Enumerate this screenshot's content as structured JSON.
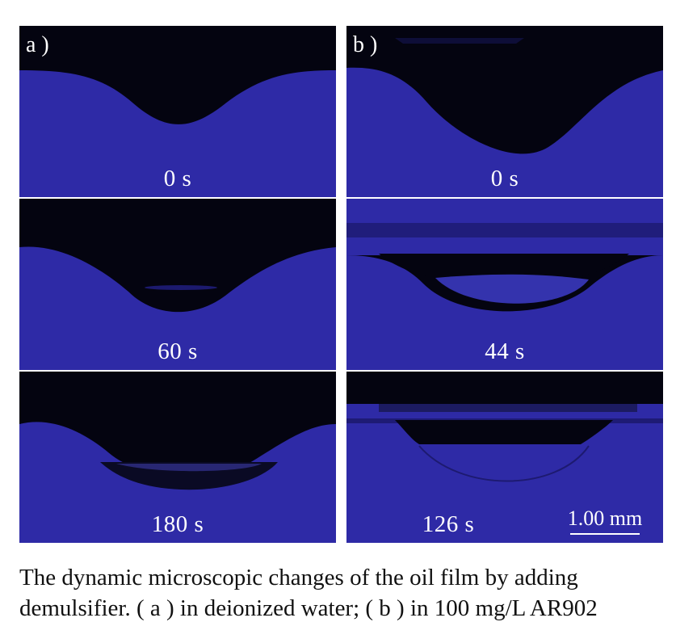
{
  "figure": {
    "panel_a": {
      "letter": "a )",
      "frames": [
        {
          "time": "0 s"
        },
        {
          "time": "60 s"
        },
        {
          "time": "180 s"
        }
      ]
    },
    "panel_b": {
      "letter": "b )",
      "frames": [
        {
          "time": "0 s"
        },
        {
          "time": "44 s"
        },
        {
          "time": "126 s"
        }
      ],
      "scale_bar": "1.00 mm"
    }
  },
  "caption": {
    "line1": "The dynamic microscopic changes of the oil film by adding",
    "line2": "demulsifier. ( a ) in deionized water; ( b ) in 100 mg/L AR902"
  },
  "colors": {
    "water_blue": "#2e2aa6",
    "oil_dark": "#040410",
    "divider": "#ffffff"
  }
}
